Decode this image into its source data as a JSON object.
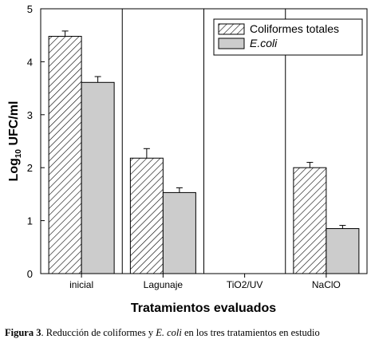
{
  "chart_data": {
    "type": "bar",
    "categories": [
      "inicial",
      "Lagunaje",
      "TiO2/UV",
      "NaClO"
    ],
    "series": [
      {
        "name": "Coliformes totales",
        "values": [
          4.48,
          2.18,
          0,
          2.0
        ],
        "errors": [
          0.1,
          0.18,
          0,
          0.1
        ],
        "fill": "hatch"
      },
      {
        "name": "E.coli",
        "values": [
          3.61,
          1.53,
          0,
          0.85
        ],
        "errors": [
          0.11,
          0.09,
          0,
          0.06
        ],
        "fill": "#cccccc"
      }
    ],
    "xlabel": "Tratamientos evaluados",
    "ylabel_prefix": "Log",
    "ylabel_sub": "10",
    "ylabel_suffix": " UFC/ml",
    "ylim": [
      0,
      5
    ],
    "yticks": [
      "0",
      "1",
      "2",
      "3",
      "4",
      "5"
    ],
    "grid": false,
    "category_separators": true,
    "legend_position": "top-right",
    "colors": {
      "ecoli_fill": "#cccccc",
      "axis": "#000000"
    }
  },
  "caption": {
    "label": "Figura 3",
    "text_before": ". Reducción de coliformes y ",
    "italic": "E. coli",
    "text_after": " en los tres tratamientos en estudio"
  }
}
